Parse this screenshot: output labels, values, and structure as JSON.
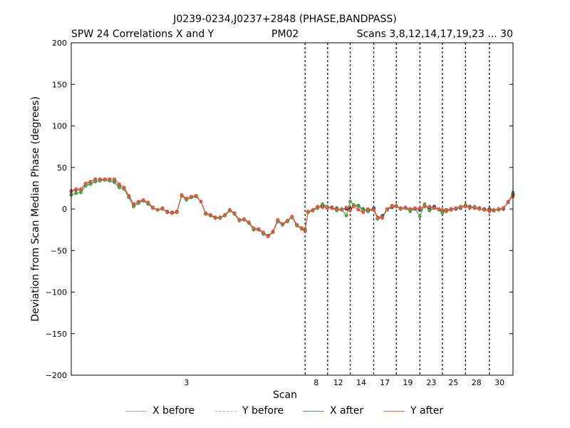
{
  "header": {
    "title": "J0239-0234,J0237+2848 (PHASE,BANDPASS)",
    "sub_left": "SPW 24 Correlations X and Y",
    "sub_mid": "PM02",
    "sub_right": "Scans 3,8,12,14,17,19,23 ... 30"
  },
  "chart_data": {
    "type": "line",
    "xlabel": "Scan",
    "ylabel": "Deviation from Scan Median Phase (degrees)",
    "ylim": [
      -200,
      200
    ],
    "y_ticks": [
      -200,
      -150,
      -100,
      -50,
      0,
      50,
      100,
      150,
      200
    ],
    "xlim": [
      0,
      92
    ],
    "scan_ticks": [
      {
        "label": "3",
        "x": 24
      },
      {
        "label": "8",
        "x": 51
      },
      {
        "label": "12",
        "x": 55.6
      },
      {
        "label": "14",
        "x": 60.4
      },
      {
        "label": "17",
        "x": 65.3
      },
      {
        "label": "19",
        "x": 70.1
      },
      {
        "label": "23",
        "x": 75
      },
      {
        "label": "25",
        "x": 79.6
      },
      {
        "label": "28",
        "x": 84.4
      },
      {
        "label": "30",
        "x": 89.2
      }
    ],
    "scan_boundaries": [
      48.7,
      53.4,
      58.1,
      63,
      67.7,
      72.6,
      77.3,
      82.1,
      87.1
    ],
    "x": [
      0,
      1,
      2,
      3,
      4,
      5,
      6,
      7,
      8,
      9,
      10,
      11,
      12,
      13,
      14,
      15,
      16,
      17,
      18,
      19,
      20,
      21,
      22,
      23,
      24,
      25,
      26,
      27,
      28,
      29,
      30,
      31,
      32,
      33,
      34,
      35,
      36,
      37,
      38,
      39,
      40,
      41,
      42,
      43,
      44,
      45,
      46,
      47,
      48,
      48.7,
      49.3,
      50.3,
      51.3,
      52.3,
      53.3,
      54.3,
      55.3,
      56.3,
      57.3,
      58.1,
      58.8,
      59.8,
      60.8,
      61.8,
      63,
      63.8,
      64.8,
      65.8,
      66.8,
      67.7,
      68.6,
      69.6,
      70.6,
      71.6,
      72.6,
      73.6,
      74.6,
      75.6,
      76.6,
      77.3,
      78.1,
      79.1,
      80.1,
      81.1,
      82.1,
      83,
      84,
      85,
      86,
      87.1,
      88,
      89,
      90,
      91,
      92
    ],
    "series": [
      {
        "name": "X before",
        "color": "#9aa7c8",
        "style": "solid",
        "values": [
          17,
          19,
          20,
          28,
          30,
          33,
          34,
          35,
          34,
          32,
          26,
          24,
          14,
          3,
          7,
          10,
          6,
          1,
          -1,
          0,
          -4,
          -5,
          -4,
          16,
          11,
          14,
          15,
          9,
          -6,
          -8,
          -11,
          -11,
          -8,
          -2,
          -6,
          -14,
          -13,
          -17,
          -25,
          -25,
          -30,
          -33,
          -28,
          -15,
          -19,
          -15,
          -10,
          -20,
          -24,
          -26,
          -4,
          -2,
          1,
          3,
          2,
          1,
          0,
          -1,
          0,
          0,
          4,
          3,
          -1,
          -2,
          0,
          -11,
          -9,
          -1,
          2,
          3,
          0,
          1,
          -1,
          0,
          -1,
          3,
          0,
          2,
          -1,
          -2,
          -2,
          -1,
          0,
          1,
          3,
          2,
          1,
          0,
          -1,
          -1,
          -2,
          -1,
          0,
          8,
          17
        ]
      },
      {
        "name": "Y before",
        "color": "#9aa7c8",
        "style": "dashed",
        "values": [
          21,
          23,
          23,
          30,
          32,
          35,
          35,
          35,
          35,
          34,
          28,
          25,
          15,
          5,
          8,
          10,
          7,
          2,
          -1,
          1,
          -3,
          -4,
          -3,
          16,
          12,
          14,
          16,
          9,
          -5,
          -7,
          -10,
          -10,
          -7,
          -1,
          -5,
          -13,
          -12,
          -16,
          -24,
          -24,
          -29,
          -32,
          -27,
          -14,
          -18,
          -14,
          -9,
          -19,
          -23,
          -25,
          -3,
          -1,
          2,
          4,
          3,
          2,
          1,
          0,
          1,
          1,
          5,
          4,
          0,
          -1,
          1,
          -10,
          -8,
          0,
          3,
          4,
          1,
          2,
          0,
          1,
          0,
          4,
          1,
          3,
          0,
          -1,
          -1,
          0,
          1,
          2,
          4,
          3,
          2,
          1,
          0,
          0,
          -1,
          0,
          1,
          9,
          18
        ]
      },
      {
        "name": "X after",
        "color": "#4ca64c",
        "style": "solid",
        "values": [
          17,
          19,
          20,
          28,
          30,
          33,
          34,
          35,
          34,
          32,
          26,
          24,
          14,
          3,
          7,
          10,
          6,
          1,
          -1,
          0,
          -4,
          -5,
          -4,
          16,
          11,
          14,
          15,
          9,
          -6,
          -8,
          -11,
          -11,
          -8,
          -2,
          -6,
          -14,
          -13,
          -17,
          -25,
          -25,
          -30,
          -33,
          -28,
          -15,
          -19,
          -15,
          -10,
          -20,
          -24,
          -26,
          -4,
          -2,
          1,
          6,
          3,
          1,
          -2,
          0,
          -8,
          9,
          5,
          3,
          -1,
          -3,
          -1,
          -12,
          -10,
          -1,
          3,
          4,
          0,
          1,
          -3,
          1,
          -9,
          6,
          -2,
          1,
          -1,
          -5,
          -2,
          -1,
          1,
          2,
          5,
          1,
          3,
          0,
          -1,
          -2,
          -1,
          -1,
          1,
          8,
          20
        ]
      },
      {
        "name": "Y after",
        "color": "#e8553c",
        "style": "solid",
        "values": [
          22,
          24,
          24,
          31,
          33,
          36,
          36,
          36,
          36,
          36,
          30,
          26,
          16,
          6,
          9,
          11,
          8,
          2,
          -1,
          1,
          -4,
          -5,
          -3,
          17,
          13,
          15,
          16,
          9,
          -5,
          -7,
          -10,
          -10,
          -7,
          -1,
          -5,
          -13,
          -12,
          -16,
          -23,
          -24,
          -28,
          -33,
          -27,
          -13,
          -18,
          -14,
          -9,
          -19,
          -23,
          -27,
          -3,
          -1,
          3,
          2,
          1,
          1,
          0,
          -1,
          2,
          -2,
          3,
          -1,
          -4,
          0,
          -1,
          -10,
          -11,
          0,
          4,
          3,
          1,
          2,
          0,
          1,
          1,
          3,
          3,
          1,
          0,
          -1,
          -3,
          -1,
          1,
          3,
          3,
          2,
          1,
          0,
          -1,
          -3,
          -1,
          0,
          1,
          9,
          15
        ]
      }
    ]
  },
  "legend": [
    {
      "label": "X before",
      "color": "#9aa7c8",
      "style": "solid"
    },
    {
      "label": "Y before",
      "color": "#9aa7c8",
      "style": "dashed"
    },
    {
      "label": "X after",
      "color": "#4ca64c",
      "style": "solid"
    },
    {
      "label": "Y after",
      "color": "#e8553c",
      "style": "solid"
    }
  ]
}
